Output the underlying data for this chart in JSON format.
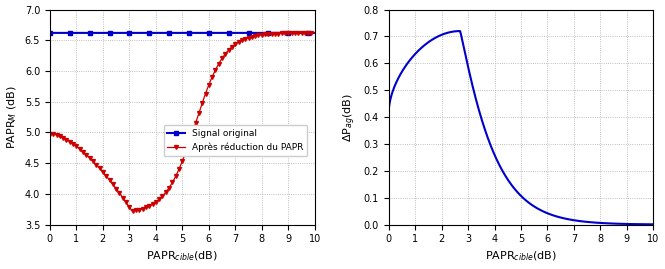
{
  "left_xlim": [
    0,
    10
  ],
  "left_ylim": [
    3.5,
    7
  ],
  "left_yticks": [
    3.5,
    4,
    4.5,
    5,
    5.5,
    6,
    6.5,
    7
  ],
  "left_xticks": [
    0,
    1,
    2,
    3,
    4,
    5,
    6,
    7,
    8,
    9,
    10
  ],
  "left_xlabel": "PAPR$_{cible}$(dB)",
  "left_ylabel": "PAPR$_{M}$ (dB)",
  "blue_line_value": 6.62,
  "legend_signal_original": "Signal original",
  "legend_apres": "Après réduction du PAPR",
  "right_xlim": [
    0,
    10
  ],
  "right_ylim": [
    0,
    0.8
  ],
  "right_yticks": [
    0,
    0.1,
    0.2,
    0.3,
    0.4,
    0.5,
    0.6,
    0.7,
    0.8
  ],
  "right_xticks": [
    0,
    1,
    2,
    3,
    4,
    5,
    6,
    7,
    8,
    9,
    10
  ],
  "right_xlabel": "PAPR$_{cible}$(dB)",
  "right_ylabel": "ΔP$_{ag}$(dB)",
  "blue_color": "#0000CC",
  "red_color": "#CC0000",
  "grid_color": "#AAAAAA",
  "bg_color": "#FFFFFF"
}
